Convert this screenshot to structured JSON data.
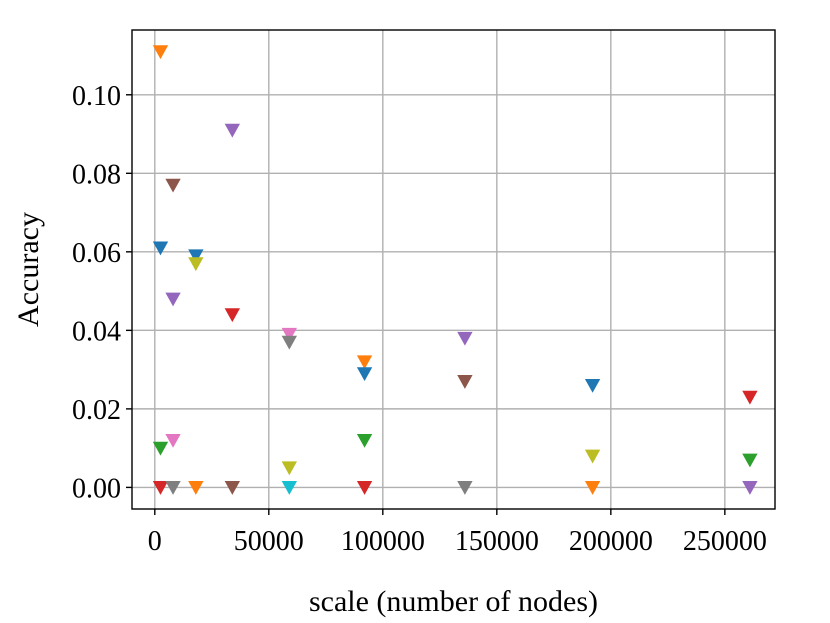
{
  "chart_data": {
    "type": "scatter",
    "title": "",
    "xlabel": "scale (number of nodes)",
    "ylabel": "Accuracy",
    "xlim": [
      -10000,
      272000
    ],
    "ylim": [
      -0.0055,
      0.1165
    ],
    "xticks": [
      0,
      50000,
      100000,
      150000,
      200000,
      250000
    ],
    "xtick_labels": [
      "0",
      "50000",
      "100000",
      "150000",
      "200000",
      "250000"
    ],
    "yticks": [
      0.0,
      0.02,
      0.04,
      0.06,
      0.08,
      0.1
    ],
    "ytick_labels": [
      "0.00",
      "0.02",
      "0.04",
      "0.06",
      "0.08",
      "0.10"
    ],
    "grid": true,
    "legend": "none",
    "marker": "triangle-down",
    "points": [
      {
        "x": 2500,
        "y": 0.111,
        "color": "#ff7f0e"
      },
      {
        "x": 2500,
        "y": 0.061,
        "color": "#1f77b4"
      },
      {
        "x": 2500,
        "y": 0.01,
        "color": "#2ca02c"
      },
      {
        "x": 2500,
        "y": 0.0,
        "color": "#d62728"
      },
      {
        "x": 8000,
        "y": 0.077,
        "color": "#8c564b"
      },
      {
        "x": 8000,
        "y": 0.048,
        "color": "#9467bd"
      },
      {
        "x": 8000,
        "y": 0.012,
        "color": "#e377c2"
      },
      {
        "x": 8000,
        "y": 0.0,
        "color": "#7f7f7f"
      },
      {
        "x": 18000,
        "y": 0.059,
        "color": "#1f77b4"
      },
      {
        "x": 18000,
        "y": 0.057,
        "color": "#bcbd22"
      },
      {
        "x": 18000,
        "y": 0.0,
        "color": "#ff7f0e"
      },
      {
        "x": 34000,
        "y": 0.091,
        "color": "#9467bd"
      },
      {
        "x": 34000,
        "y": 0.044,
        "color": "#d62728"
      },
      {
        "x": 34000,
        "y": 0.0,
        "color": "#8c564b"
      },
      {
        "x": 59000,
        "y": 0.039,
        "color": "#e377c2"
      },
      {
        "x": 59000,
        "y": 0.037,
        "color": "#7f7f7f"
      },
      {
        "x": 59000,
        "y": 0.005,
        "color": "#bcbd22"
      },
      {
        "x": 59000,
        "y": 0.0,
        "color": "#17becf"
      },
      {
        "x": 92000,
        "y": 0.032,
        "color": "#ff7f0e"
      },
      {
        "x": 92000,
        "y": 0.029,
        "color": "#1f77b4"
      },
      {
        "x": 92000,
        "y": 0.012,
        "color": "#2ca02c"
      },
      {
        "x": 92000,
        "y": 0.0,
        "color": "#d62728"
      },
      {
        "x": 136000,
        "y": 0.038,
        "color": "#9467bd"
      },
      {
        "x": 136000,
        "y": 0.027,
        "color": "#8c564b"
      },
      {
        "x": 136000,
        "y": 0.0,
        "color": "#7f7f7f"
      },
      {
        "x": 192000,
        "y": 0.026,
        "color": "#1f77b4"
      },
      {
        "x": 192000,
        "y": 0.008,
        "color": "#bcbd22"
      },
      {
        "x": 192000,
        "y": 0.0,
        "color": "#ff7f0e"
      },
      {
        "x": 261000,
        "y": 0.023,
        "color": "#d62728"
      },
      {
        "x": 261000,
        "y": 0.007,
        "color": "#2ca02c"
      },
      {
        "x": 261000,
        "y": 0.0,
        "color": "#9467bd"
      }
    ]
  }
}
